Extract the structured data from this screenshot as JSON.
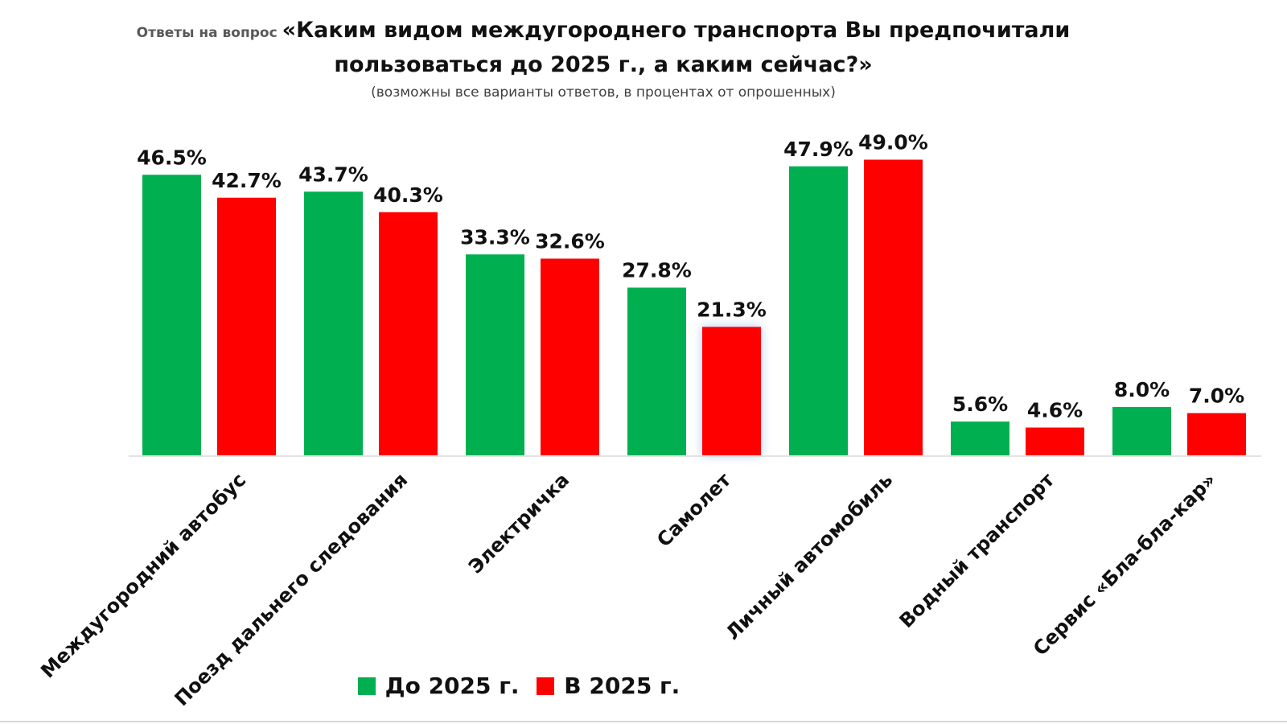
{
  "title": {
    "prefix": "Ответы на вопрос",
    "line1": "«Каким видом междугороднего транспорта Вы предпочитали",
    "line2": "пользоваться до 2025 г., а каким сейчас?»",
    "subtitle": "(возможны все варианты ответов,  в процентах от опрошенных)"
  },
  "colors": {
    "before": "#00B050",
    "now": "#FF0000"
  },
  "chart_data": {
    "type": "bar",
    "categories": [
      "Междугородний автобус",
      "Поезд дальнего следования",
      "Электричка",
      "Самолет",
      "Личный автомобиль",
      "Водный транспорт",
      "Сервис «Бла-бла-кар»"
    ],
    "series": [
      {
        "name": "До 2025 г.",
        "values": [
          46.5,
          43.7,
          33.3,
          27.8,
          47.9,
          5.6,
          8.0
        ],
        "labels": [
          "46.5%",
          "43.7%",
          "33.3%",
          "27.8%",
          "47.9%",
          "5.6%",
          "8.0%"
        ]
      },
      {
        "name": "В 2025 г.",
        "values": [
          42.7,
          40.3,
          32.6,
          21.3,
          49.0,
          4.6,
          7.0
        ],
        "labels": [
          "42.7%",
          "40.3%",
          "32.6%",
          "21.3%",
          "49.0%",
          "4.6%",
          "7.0%"
        ]
      }
    ],
    "ylim": [
      0,
      50
    ],
    "legend_position": "bottom",
    "grid": false
  }
}
